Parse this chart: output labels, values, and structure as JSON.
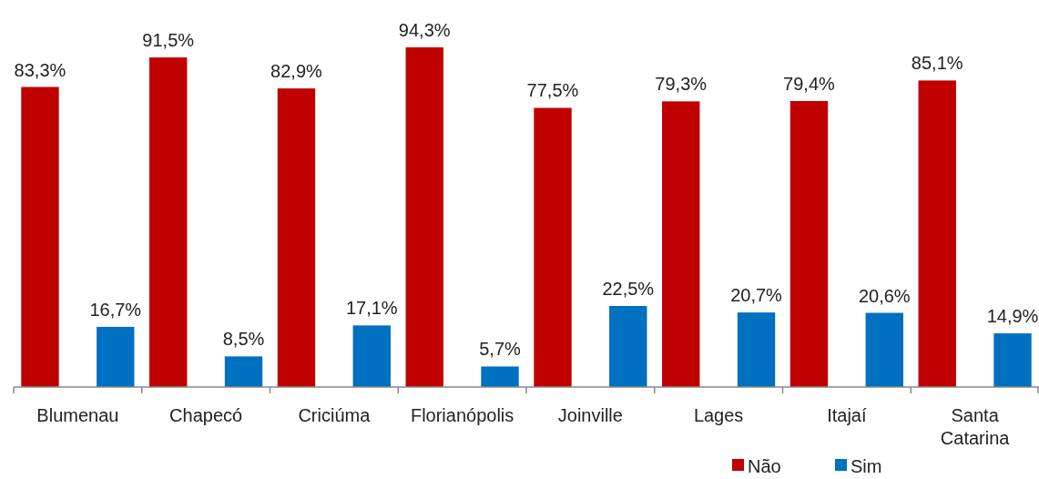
{
  "chart_data": {
    "type": "bar",
    "categories": [
      "Blumenau",
      "Chapecó",
      "Criciúma",
      "Florianópolis",
      "Joinville",
      "Lages",
      "Itajaí",
      "Santa Catarina"
    ],
    "series": [
      {
        "name": "Não",
        "color": "#c00000",
        "values": [
          83.3,
          91.5,
          82.9,
          94.3,
          77.5,
          79.3,
          79.4,
          85.1
        ],
        "value_labels": [
          "83,3%",
          "91,5%",
          "82,9%",
          "94,3%",
          "77,5%",
          "79,3%",
          "79,4%",
          "85,1%"
        ]
      },
      {
        "name": "Sim",
        "color": "#0070c0",
        "values": [
          16.7,
          8.5,
          17.1,
          5.7,
          22.5,
          20.7,
          20.6,
          14.9
        ],
        "value_labels": [
          "16,7%",
          "8,5%",
          "17,1%",
          "5,7%",
          "22,5%",
          "20,7%",
          "20,6%",
          "14,9%"
        ]
      }
    ],
    "legend": "bottom right",
    "grid": false
  }
}
